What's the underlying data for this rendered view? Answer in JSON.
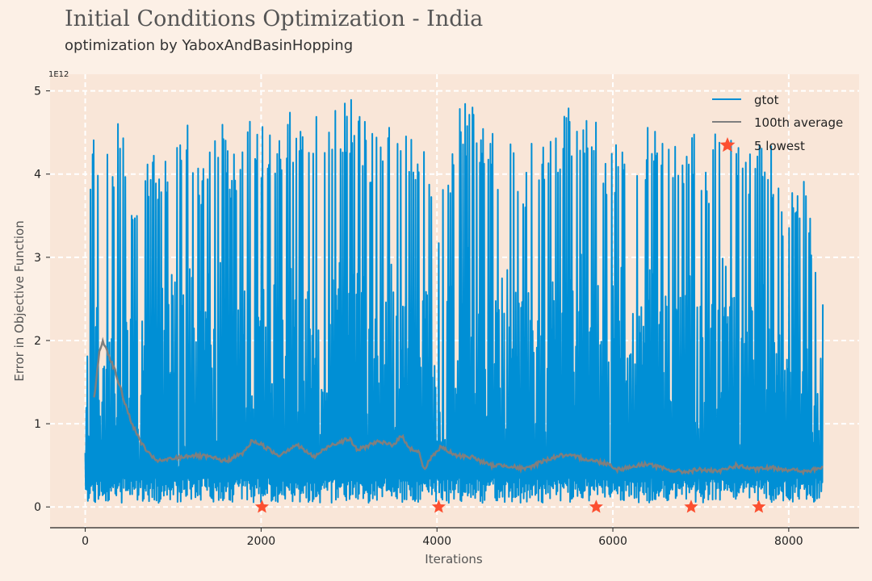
{
  "chart_data": {
    "type": "line",
    "title": "Initial Conditions Optimization - India",
    "subtitle": "optimization by YaboxAndBasinHopping",
    "xlabel": "Iterations",
    "ylabel": "Error in Objective Function",
    "y_scale_label": "1E12",
    "xlim": [
      -400,
      8800
    ],
    "ylim": [
      -0.25,
      5.2
    ],
    "x_ticks": [
      0,
      2000,
      4000,
      6000,
      8000
    ],
    "x_tick_labels": [
      "0",
      "2000",
      "4000",
      "6000",
      "8000"
    ],
    "y_ticks": [
      0,
      1,
      2,
      3,
      4,
      5
    ],
    "y_tick_labels": [
      "0",
      "1",
      "2",
      "3",
      "4",
      "5"
    ],
    "grid": true,
    "legend_position": "top-right",
    "series": [
      {
        "name": "gtot",
        "color": "#008fd5",
        "x_range": [
          0,
          8390
        ],
        "baseline_range": [
          0.05,
          0.35
        ],
        "peaks": [
          {
            "x": 20,
            "y": 2.65
          },
          {
            "x": 35,
            "y": 4.35
          },
          {
            "x": 80,
            "y": 4.5
          },
          {
            "x": 120,
            "y": 4.45
          },
          {
            "x": 160,
            "y": 4.4
          },
          {
            "x": 200,
            "y": 4.0
          },
          {
            "x": 250,
            "y": 4.6
          },
          {
            "x": 290,
            "y": 4.9
          },
          {
            "x": 330,
            "y": 4.2
          },
          {
            "x": 390,
            "y": 4.9
          },
          {
            "x": 440,
            "y": 4.7
          },
          {
            "x": 500,
            "y": 3.9
          },
          {
            "x": 560,
            "y": 4.0
          },
          {
            "x": 620,
            "y": 3.3
          },
          {
            "x": 700,
            "y": 4.15
          },
          {
            "x": 780,
            "y": 4.45
          },
          {
            "x": 860,
            "y": 4.2
          },
          {
            "x": 940,
            "y": 4.4
          },
          {
            "x": 1050,
            "y": 4.6
          },
          {
            "x": 1170,
            "y": 4.95
          },
          {
            "x": 1290,
            "y": 4.1
          },
          {
            "x": 1420,
            "y": 4.5
          },
          {
            "x": 1550,
            "y": 4.95
          },
          {
            "x": 1680,
            "y": 4.2
          },
          {
            "x": 1800,
            "y": 4.6
          },
          {
            "x": 1930,
            "y": 4.8
          },
          {
            "x": 2060,
            "y": 4.5
          },
          {
            "x": 2190,
            "y": 4.55
          },
          {
            "x": 2330,
            "y": 4.8
          },
          {
            "x": 2460,
            "y": 4.95
          },
          {
            "x": 2600,
            "y": 4.95
          },
          {
            "x": 2740,
            "y": 4.5
          },
          {
            "x": 2880,
            "y": 4.9
          },
          {
            "x": 3020,
            "y": 4.95
          },
          {
            "x": 3160,
            "y": 4.75
          },
          {
            "x": 3300,
            "y": 4.45
          },
          {
            "x": 3440,
            "y": 4.6
          },
          {
            "x": 3580,
            "y": 4.8
          },
          {
            "x": 3720,
            "y": 4.6
          },
          {
            "x": 3860,
            "y": 4.5
          },
          {
            "x": 4000,
            "y": 3.6
          },
          {
            "x": 4140,
            "y": 4.35
          },
          {
            "x": 4280,
            "y": 4.95
          },
          {
            "x": 4420,
            "y": 4.95
          },
          {
            "x": 4560,
            "y": 4.6
          },
          {
            "x": 4700,
            "y": 4.45
          },
          {
            "x": 4840,
            "y": 4.55
          },
          {
            "x": 4980,
            "y": 4.0
          },
          {
            "x": 5120,
            "y": 4.6
          },
          {
            "x": 5260,
            "y": 4.3
          },
          {
            "x": 5400,
            "y": 4.75
          },
          {
            "x": 5540,
            "y": 4.95
          },
          {
            "x": 5680,
            "y": 4.9
          },
          {
            "x": 5820,
            "y": 4.6
          },
          {
            "x": 5960,
            "y": 4.2
          },
          {
            "x": 6100,
            "y": 4.7
          },
          {
            "x": 6240,
            "y": 4.5
          },
          {
            "x": 6380,
            "y": 4.6
          },
          {
            "x": 6520,
            "y": 4.95
          },
          {
            "x": 6660,
            "y": 4.3
          },
          {
            "x": 6800,
            "y": 4.4
          },
          {
            "x": 6940,
            "y": 4.6
          },
          {
            "x": 7080,
            "y": 4.15
          },
          {
            "x": 7220,
            "y": 4.9
          },
          {
            "x": 7360,
            "y": 4.7
          },
          {
            "x": 7500,
            "y": 4.25
          },
          {
            "x": 7640,
            "y": 4.6
          },
          {
            "x": 7780,
            "y": 4.55
          },
          {
            "x": 7920,
            "y": 3.7
          },
          {
            "x": 8060,
            "y": 4.0
          },
          {
            "x": 8200,
            "y": 4.0
          },
          {
            "x": 8320,
            "y": 2.85
          }
        ]
      },
      {
        "name": "100th average",
        "color": "#7f7f7f",
        "values": [
          {
            "x": 100,
            "y": 1.3
          },
          {
            "x": 160,
            "y": 1.85
          },
          {
            "x": 200,
            "y": 2.0
          },
          {
            "x": 260,
            "y": 1.85
          },
          {
            "x": 350,
            "y": 1.6
          },
          {
            "x": 450,
            "y": 1.25
          },
          {
            "x": 550,
            "y": 0.95
          },
          {
            "x": 650,
            "y": 0.75
          },
          {
            "x": 750,
            "y": 0.6
          },
          {
            "x": 850,
            "y": 0.55
          },
          {
            "x": 1000,
            "y": 0.58
          },
          {
            "x": 1200,
            "y": 0.62
          },
          {
            "x": 1400,
            "y": 0.6
          },
          {
            "x": 1600,
            "y": 0.55
          },
          {
            "x": 1800,
            "y": 0.65
          },
          {
            "x": 1900,
            "y": 0.8
          },
          {
            "x": 2000,
            "y": 0.75
          },
          {
            "x": 2200,
            "y": 0.62
          },
          {
            "x": 2400,
            "y": 0.75
          },
          {
            "x": 2600,
            "y": 0.6
          },
          {
            "x": 2800,
            "y": 0.75
          },
          {
            "x": 3000,
            "y": 0.82
          },
          {
            "x": 3100,
            "y": 0.68
          },
          {
            "x": 3300,
            "y": 0.78
          },
          {
            "x": 3500,
            "y": 0.75
          },
          {
            "x": 3600,
            "y": 0.85
          },
          {
            "x": 3700,
            "y": 0.7
          },
          {
            "x": 3800,
            "y": 0.65
          },
          {
            "x": 3850,
            "y": 0.45
          },
          {
            "x": 3950,
            "y": 0.62
          },
          {
            "x": 4050,
            "y": 0.72
          },
          {
            "x": 4200,
            "y": 0.62
          },
          {
            "x": 4400,
            "y": 0.6
          },
          {
            "x": 4600,
            "y": 0.5
          },
          {
            "x": 4800,
            "y": 0.5
          },
          {
            "x": 5000,
            "y": 0.45
          },
          {
            "x": 5200,
            "y": 0.55
          },
          {
            "x": 5400,
            "y": 0.62
          },
          {
            "x": 5600,
            "y": 0.6
          },
          {
            "x": 5800,
            "y": 0.55
          },
          {
            "x": 5950,
            "y": 0.52
          },
          {
            "x": 6050,
            "y": 0.45
          },
          {
            "x": 6200,
            "y": 0.48
          },
          {
            "x": 6400,
            "y": 0.52
          },
          {
            "x": 6600,
            "y": 0.45
          },
          {
            "x": 6800,
            "y": 0.42
          },
          {
            "x": 7000,
            "y": 0.45
          },
          {
            "x": 7200,
            "y": 0.42
          },
          {
            "x": 7400,
            "y": 0.5
          },
          {
            "x": 7600,
            "y": 0.45
          },
          {
            "x": 7800,
            "y": 0.47
          },
          {
            "x": 8000,
            "y": 0.45
          },
          {
            "x": 8200,
            "y": 0.42
          },
          {
            "x": 8390,
            "y": 0.48
          }
        ]
      },
      {
        "name": "5 lowest",
        "color": "#fc4f30",
        "marker": "star",
        "points": [
          {
            "x": 2010,
            "y": 0.0
          },
          {
            "x": 4020,
            "y": 0.0
          },
          {
            "x": 5810,
            "y": 0.0
          },
          {
            "x": 6890,
            "y": 0.0
          },
          {
            "x": 7660,
            "y": 0.0
          }
        ]
      }
    ]
  }
}
